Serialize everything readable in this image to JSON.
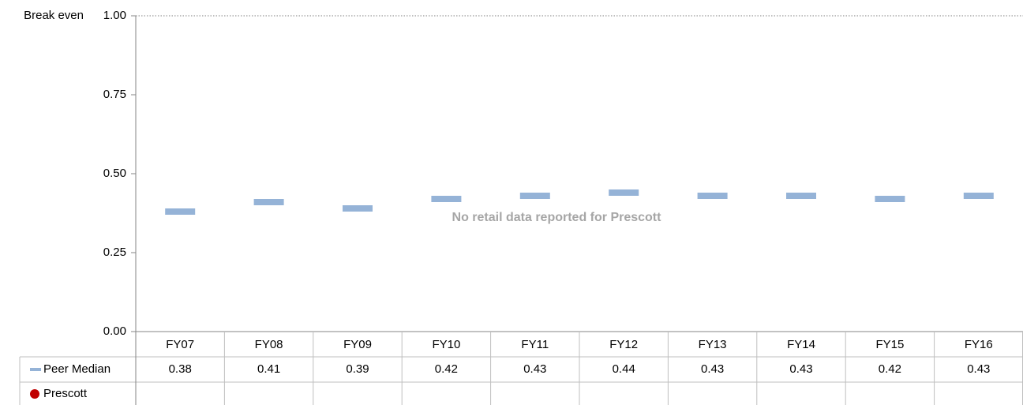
{
  "chart_data": {
    "type": "dash",
    "categories": [
      "FY07",
      "FY08",
      "FY09",
      "FY10",
      "FY11",
      "FY12",
      "FY13",
      "FY14",
      "FY15",
      "FY16"
    ],
    "series": [
      {
        "name": "Peer Median",
        "color": "#95b3d7",
        "values": [
          0.38,
          0.41,
          0.39,
          0.42,
          0.43,
          0.44,
          0.43,
          0.43,
          0.42,
          0.43
        ]
      },
      {
        "name": "Prescott",
        "color": "#c00000",
        "values": [
          null,
          null,
          null,
          null,
          null,
          null,
          null,
          null,
          null,
          null
        ]
      }
    ],
    "ylim": [
      0,
      1
    ],
    "yticks": [
      {
        "value": 0,
        "label": "0.00"
      },
      {
        "value": 0.25,
        "label": "0.25"
      },
      {
        "value": 0.5,
        "label": "0.50"
      },
      {
        "value": 0.75,
        "label": "0.75"
      },
      {
        "value": 1,
        "label": "1.00"
      }
    ],
    "reference_line": {
      "label": "Break even",
      "value": 1
    },
    "annotation": "No retail data reported for Prescott",
    "data_table": true
  }
}
